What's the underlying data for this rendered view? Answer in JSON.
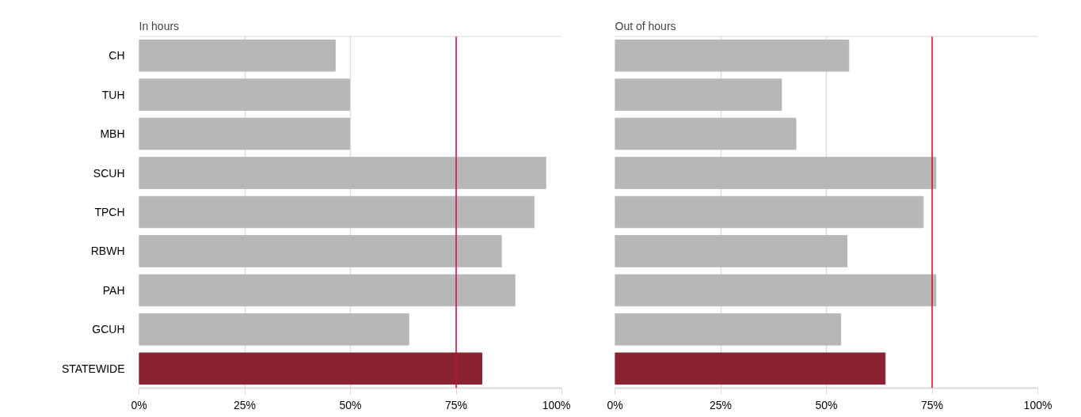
{
  "chart_data": [
    {
      "type": "bar",
      "orientation": "horizontal",
      "title": "In hours",
      "categories": [
        "CH",
        "TUH",
        "MBH",
        "SCUH",
        "TPCH",
        "RBWH",
        "PAH",
        "GCUH",
        "STATEWIDE"
      ],
      "values": [
        46.4,
        49.8,
        49.8,
        96.2,
        93.4,
        85.7,
        88.9,
        63.8,
        81.1
      ],
      "colors": [
        "#b7b7b7",
        "#b7b7b7",
        "#b7b7b7",
        "#b7b7b7",
        "#b7b7b7",
        "#b7b7b7",
        "#b7b7b7",
        "#b7b7b7",
        "#8b2232"
      ],
      "xlim": [
        0,
        100
      ],
      "xticks": [
        {
          "value": 0,
          "label": "0%"
        },
        {
          "value": 25,
          "label": "25%"
        },
        {
          "value": 50,
          "label": "50%"
        },
        {
          "value": 75,
          "label": "75%"
        },
        {
          "value": 100,
          "label": "100%"
        }
      ],
      "ref_lines": [
        {
          "axis": "x",
          "value": 75,
          "color": "#c8102e"
        }
      ],
      "grid": "x"
    },
    {
      "type": "bar",
      "orientation": "horizontal",
      "title": "Out of hours",
      "categories": [
        null,
        null,
        null,
        null,
        null,
        null,
        null,
        null,
        null
      ],
      "values": [
        55.3,
        39.4,
        42.8,
        75.9,
        72.9,
        54.9,
        75.9,
        53.4,
        63.9
      ],
      "colors": [
        "#b7b7b7",
        "#b7b7b7",
        "#b7b7b7",
        "#b7b7b7",
        "#b7b7b7",
        "#b7b7b7",
        "#b7b7b7",
        "#b7b7b7",
        "#8b2232"
      ],
      "xlim": [
        0,
        100
      ],
      "xticks": [
        {
          "value": 0,
          "label": "0%"
        },
        {
          "value": 25,
          "label": "25%"
        },
        {
          "value": 50,
          "label": "50%"
        },
        {
          "value": 75,
          "label": "75%"
        },
        {
          "value": 100,
          "label": "100%"
        }
      ],
      "ref_lines": [
        {
          "axis": "x",
          "value": 75,
          "color": "#c8102e"
        }
      ],
      "tick_labels": "x",
      "grid": "x"
    }
  ]
}
